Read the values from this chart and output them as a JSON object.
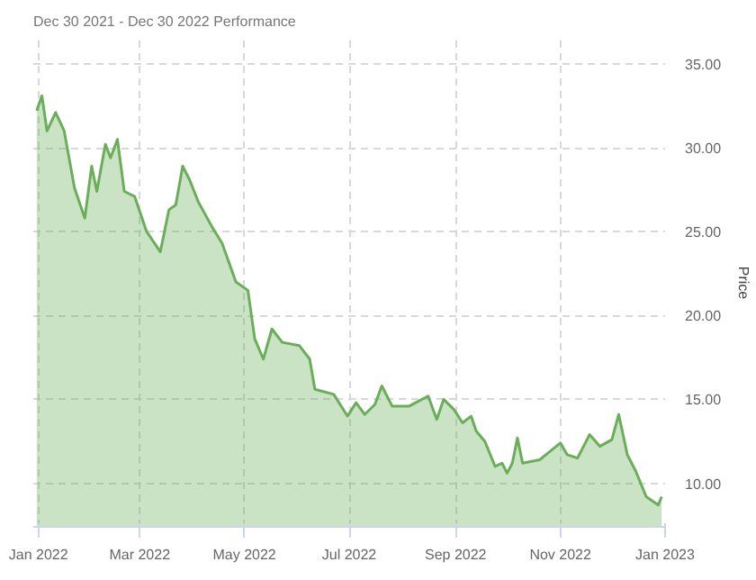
{
  "chart_data": {
    "type": "area",
    "title": "Dec 30 2021 - Dec 30 2022 Performance",
    "ylabel": "Price",
    "x": [
      "2021-12-31",
      "2022-01-03",
      "2022-01-06",
      "2022-01-11",
      "2022-01-16",
      "2022-01-22",
      "2022-01-28",
      "2022-02-01",
      "2022-02-04",
      "2022-02-09",
      "2022-02-12",
      "2022-02-16",
      "2022-02-20",
      "2022-02-26",
      "2022-03-05",
      "2022-03-13",
      "2022-03-18",
      "2022-03-22",
      "2022-03-26",
      "2022-03-30",
      "2022-04-04",
      "2022-04-12",
      "2022-04-18",
      "2022-04-26",
      "2022-05-03",
      "2022-05-07",
      "2022-05-12",
      "2022-05-17",
      "2022-05-23",
      "2022-06-02",
      "2022-06-08",
      "2022-06-11",
      "2022-06-22",
      "2022-06-30",
      "2022-07-05",
      "2022-07-10",
      "2022-07-16",
      "2022-07-20",
      "2022-07-26",
      "2022-08-05",
      "2022-08-16",
      "2022-08-21",
      "2022-08-25",
      "2022-08-31",
      "2022-09-05",
      "2022-09-10",
      "2022-09-13",
      "2022-09-18",
      "2022-09-24",
      "2022-09-28",
      "2022-10-01",
      "2022-10-04",
      "2022-10-07",
      "2022-10-10",
      "2022-10-20",
      "2022-10-26",
      "2022-11-01",
      "2022-11-05",
      "2022-11-11",
      "2022-11-18",
      "2022-11-24",
      "2022-12-01",
      "2022-12-05",
      "2022-12-10",
      "2022-12-15",
      "2022-12-21",
      "2022-12-28",
      "2022-12-30"
    ],
    "series": [
      {
        "color": "#6aae5a",
        "values": [
          32.2,
          33.1,
          31.0,
          32.1,
          31.0,
          27.6,
          25.8,
          28.9,
          27.4,
          30.2,
          29.4,
          30.5,
          27.4,
          27.1,
          25.0,
          23.8,
          26.3,
          26.6,
          28.9,
          28.1,
          26.8,
          25.3,
          24.3,
          22.0,
          21.5,
          18.6,
          17.4,
          19.2,
          18.4,
          18.2,
          17.4,
          15.6,
          15.3,
          14.0,
          14.8,
          14.1,
          14.7,
          15.8,
          14.6,
          14.6,
          15.2,
          13.8,
          15.0,
          14.4,
          13.6,
          14.0,
          13.1,
          12.5,
          11.0,
          11.2,
          10.6,
          11.2,
          12.7,
          11.2,
          11.4,
          11.9,
          12.4,
          11.7,
          11.5,
          12.9,
          12.2,
          12.6,
          14.1,
          11.7,
          10.7,
          9.2,
          8.7,
          9.2
        ]
      }
    ],
    "xlim": [
      "2021-12-29",
      "2023-01-01"
    ],
    "xticks": [
      {
        "value": "2022-01-01",
        "label": "Jan 2022"
      },
      {
        "value": "2022-03-01",
        "label": "Mar 2022"
      },
      {
        "value": "2022-05-01",
        "label": "May 2022"
      },
      {
        "value": "2022-07-01",
        "label": "Jul 2022"
      },
      {
        "value": "2022-09-01",
        "label": "Sep 2022"
      },
      {
        "value": "2022-11-01",
        "label": "Nov 2022"
      },
      {
        "value": "2023-01-01",
        "label": "Jan 2023"
      }
    ],
    "ylim": [
      7.4,
      36.5
    ],
    "yticks": [
      {
        "value": 10,
        "label": "10.00"
      },
      {
        "value": 15,
        "label": "15.00"
      },
      {
        "value": 20,
        "label": "20.00"
      },
      {
        "value": 25,
        "label": "25.00"
      },
      {
        "value": 30,
        "label": "30.00"
      },
      {
        "value": 35,
        "label": "35.00"
      }
    ],
    "grid": true
  }
}
